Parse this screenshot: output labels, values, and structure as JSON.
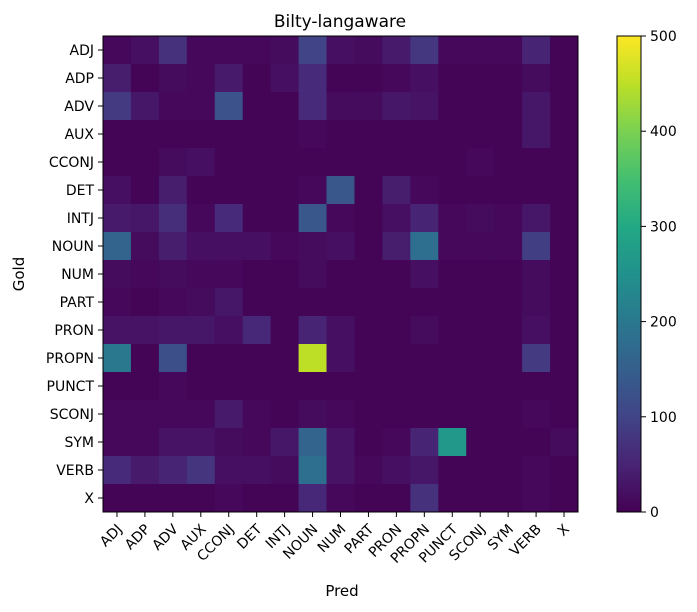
{
  "chart_data": {
    "type": "heatmap",
    "title": "Bilty-langaware",
    "xlabel": "Pred",
    "ylabel": "Gold",
    "x_categories": [
      "ADJ",
      "ADP",
      "ADV",
      "AUX",
      "CCONJ",
      "DET",
      "INTJ",
      "NOUN",
      "NUM",
      "PART",
      "PRON",
      "PROPN",
      "PUNCT",
      "SCONJ",
      "SYM",
      "VERB",
      "X"
    ],
    "y_categories": [
      "ADJ",
      "ADP",
      "ADV",
      "AUX",
      "CCONJ",
      "DET",
      "INTJ",
      "NOUN",
      "NUM",
      "PART",
      "PRON",
      "PROPN",
      "PUNCT",
      "SCONJ",
      "SYM",
      "VERB",
      "X"
    ],
    "values": [
      [
        10,
        20,
        70,
        10,
        10,
        10,
        15,
        100,
        20,
        15,
        35,
        80,
        10,
        10,
        10,
        50,
        5
      ],
      [
        40,
        5,
        15,
        10,
        35,
        5,
        20,
        60,
        5,
        5,
        10,
        20,
        5,
        5,
        5,
        15,
        5
      ],
      [
        85,
        30,
        10,
        10,
        125,
        5,
        5,
        60,
        15,
        15,
        30,
        25,
        5,
        5,
        5,
        30,
        5
      ],
      [
        5,
        5,
        5,
        5,
        5,
        5,
        5,
        10,
        5,
        5,
        5,
        5,
        5,
        5,
        5,
        30,
        5
      ],
      [
        5,
        5,
        15,
        20,
        5,
        5,
        5,
        5,
        5,
        5,
        5,
        5,
        5,
        10,
        5,
        5,
        5
      ],
      [
        20,
        5,
        40,
        5,
        5,
        5,
        5,
        10,
        135,
        5,
        40,
        10,
        5,
        5,
        5,
        5,
        5
      ],
      [
        35,
        30,
        65,
        10,
        60,
        5,
        5,
        135,
        10,
        5,
        20,
        50,
        10,
        15,
        10,
        30,
        5
      ],
      [
        160,
        15,
        40,
        20,
        20,
        20,
        10,
        15,
        20,
        5,
        40,
        180,
        10,
        10,
        10,
        90,
        5
      ],
      [
        15,
        10,
        15,
        10,
        10,
        5,
        5,
        15,
        5,
        5,
        5,
        20,
        5,
        5,
        5,
        15,
        5
      ],
      [
        10,
        5,
        10,
        15,
        30,
        5,
        5,
        5,
        5,
        5,
        5,
        5,
        5,
        5,
        5,
        15,
        5
      ],
      [
        25,
        25,
        30,
        30,
        20,
        55,
        5,
        50,
        20,
        5,
        5,
        15,
        5,
        5,
        5,
        20,
        5
      ],
      [
        200,
        5,
        120,
        5,
        5,
        5,
        5,
        450,
        20,
        5,
        5,
        5,
        5,
        5,
        5,
        85,
        5
      ],
      [
        5,
        5,
        10,
        5,
        5,
        5,
        5,
        5,
        5,
        5,
        5,
        5,
        5,
        5,
        5,
        5,
        5
      ],
      [
        10,
        10,
        10,
        10,
        35,
        10,
        5,
        15,
        10,
        5,
        5,
        5,
        5,
        5,
        5,
        10,
        5
      ],
      [
        10,
        10,
        25,
        25,
        15,
        10,
        30,
        160,
        25,
        5,
        10,
        50,
        265,
        5,
        5,
        5,
        15
      ],
      [
        60,
        35,
        50,
        75,
        20,
        20,
        15,
        180,
        25,
        10,
        20,
        30,
        5,
        5,
        5,
        10,
        5
      ],
      [
        5,
        5,
        5,
        5,
        10,
        5,
        5,
        55,
        10,
        5,
        5,
        70,
        5,
        5,
        5,
        10,
        5
      ]
    ],
    "colorbar": {
      "min": 0,
      "max": 500,
      "ticks": [
        0,
        100,
        200,
        300,
        400,
        500
      ],
      "colormap": "viridis"
    }
  }
}
